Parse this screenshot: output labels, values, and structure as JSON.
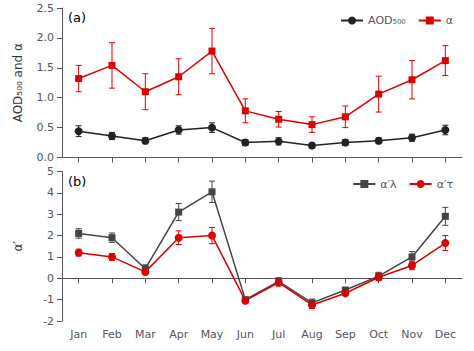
{
  "chart_data": [
    {
      "type": "line",
      "ylabel": "AOD₅₀₀ and α",
      "annotation": "(a)",
      "categories": [
        "Jan",
        "Feb",
        "Mar",
        "Apr",
        "May",
        "Jun",
        "Jul",
        "Aug",
        "Sep",
        "Oct",
        "Nov",
        "Dec"
      ],
      "tick_labels": "y",
      "ylim": [
        0.0,
        2.5
      ],
      "yticks": [
        {
          "value": 0,
          "label": "0.0"
        },
        0.5,
        {
          "value": 1,
          "label": "1.0"
        },
        1.5,
        {
          "value": 2,
          "label": "2.0"
        },
        2.5
      ],
      "grid": false,
      "legend": "upper right",
      "series": [
        {
          "name": "AOD₅₀₀",
          "color": "#222222",
          "marker": "circle",
          "values": [
            0.44,
            0.36,
            0.28,
            0.46,
            0.5,
            0.25,
            0.27,
            0.2,
            0.25,
            0.28,
            0.33,
            0.46
          ],
          "errors": [
            0.09,
            0.06,
            0.05,
            0.07,
            0.08,
            0.05,
            0.06,
            0.04,
            0.05,
            0.05,
            0.06,
            0.08
          ]
        },
        {
          "name": "α",
          "color": "#dd0000",
          "marker": "square",
          "values": [
            1.32,
            1.54,
            1.1,
            1.35,
            1.78,
            0.78,
            0.64,
            0.55,
            0.68,
            1.06,
            1.3,
            1.62
          ],
          "errors": [
            0.22,
            0.38,
            0.3,
            0.3,
            0.38,
            0.2,
            0.13,
            0.13,
            0.18,
            0.3,
            0.32,
            0.25
          ]
        }
      ]
    },
    {
      "type": "line",
      "ylabel": "α′",
      "annotation": "(b)",
      "categories": [
        "Jan",
        "Feb",
        "Mar",
        "Apr",
        "May",
        "Jun",
        "Jul",
        "Aug",
        "Sep",
        "Oct",
        "Nov",
        "Dec"
      ],
      "ylim": [
        -2.0,
        5.0
      ],
      "yticks": [
        -2,
        -1,
        0,
        1,
        2,
        3,
        4,
        5
      ],
      "grid": false,
      "legend": "upper right",
      "series": [
        {
          "name": "α′λ",
          "color": "#444444",
          "marker": "square",
          "values": [
            2.1,
            1.9,
            0.45,
            3.1,
            4.05,
            -1.0,
            -0.15,
            -1.15,
            -0.55,
            0.1,
            1.0,
            2.9
          ],
          "errors": [
            0.22,
            0.22,
            0.18,
            0.4,
            0.5,
            0.1,
            0.18,
            0.18,
            0.12,
            0.18,
            0.25,
            0.42
          ]
        },
        {
          "name": "α′τ",
          "color": "#dd0000",
          "marker": "circle",
          "values": [
            1.2,
            1.0,
            0.3,
            1.9,
            2.0,
            -1.05,
            -0.2,
            -1.25,
            -0.7,
            0.05,
            0.6,
            1.65
          ],
          "errors": [
            0.16,
            0.16,
            0.14,
            0.32,
            0.38,
            0.09,
            0.16,
            0.16,
            0.1,
            0.16,
            0.2,
            0.35
          ]
        }
      ]
    }
  ]
}
